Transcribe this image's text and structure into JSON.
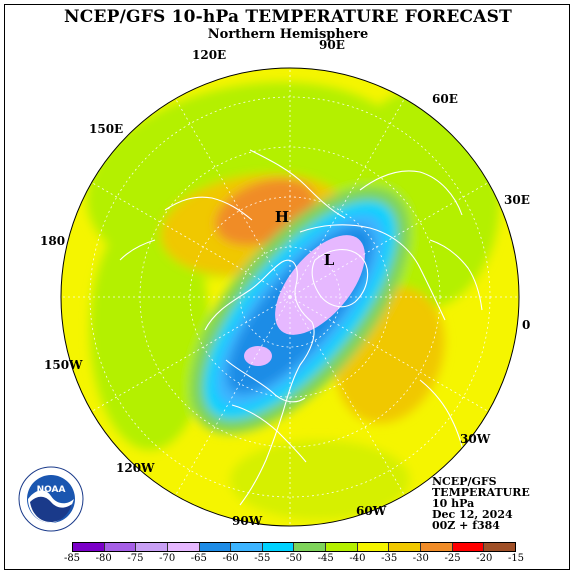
{
  "header": {
    "title": "NCEP/GFS 10-hPa TEMPERATURE FORECAST",
    "subtitle": "Northern Hemisphere"
  },
  "longitude_labels": [
    "90E",
    "60E",
    "30E",
    "0",
    "30W",
    "60W",
    "90W",
    "120W",
    "150W",
    "180",
    "150E",
    "120E"
  ],
  "pressure_centers": [
    "H",
    "L"
  ],
  "info": {
    "line1": "NCEP/GFS",
    "line2": "TEMPERATURE",
    "line3": "10 hPa",
    "line4": "Dec 12, 2024",
    "line5": "00Z + f384"
  },
  "logo": {
    "text": "NOAA",
    "ring_text": "NATIONAL OCEANIC AND ATMOSPHERIC ADMINISTRATION · U.S. DEPARTMENT OF COMMERCE"
  },
  "legend": {
    "ticks": [
      "-85",
      "-80",
      "-75",
      "-70",
      "-65",
      "-60",
      "-55",
      "-50",
      "-45",
      "-40",
      "-35",
      "-30",
      "-25",
      "-20",
      "-15"
    ],
    "colors": [
      "#7b00c8",
      "#a65fe6",
      "#c9a0f5",
      "#e6b8ff",
      "#1e8ce6",
      "#3cb4ff",
      "#00d2ff",
      "#7ed35a",
      "#b4f000",
      "#f5f500",
      "#f0c800",
      "#f08c28",
      "#ff0000",
      "#a05028"
    ]
  }
}
